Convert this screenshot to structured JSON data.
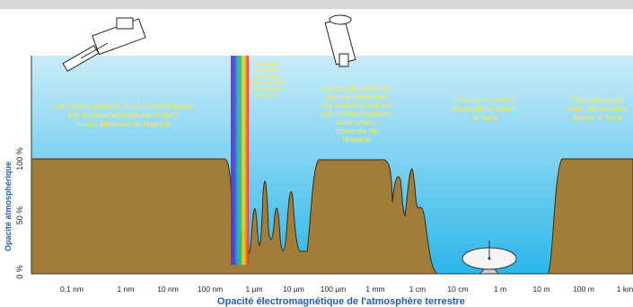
{
  "y_axis": {
    "title": "Opacité atmosphérique",
    "ticks": [
      "100 %",
      "50 %",
      "0 %"
    ]
  },
  "x_axis": {
    "title": "Opacité électromagnétique de l'atmosphère terrestre",
    "ticks": [
      "0,1 nm",
      "1 nm",
      "10 nm",
      "100 nm",
      "1 µm",
      "10 µm",
      "100 µm",
      "1 mm",
      "1 cm",
      "10 cm",
      "1 m",
      "10 m",
      "100 m",
      "1 km"
    ]
  },
  "annotations": [
    {
      "lines": [
        "Les rayons gamma, X et UV sont bloqués",
        "par la haute atmosphère et donc",
        "mieux observés de l'espace"
      ]
    },
    {
      "lines": [
        "La lumière",
        "visible est",
        "observable",
        "depuis la Terre",
        "avec quelques",
        "distorsions"
      ]
    },
    {
      "lines": [
        "La grande partie du",
        "spectre infrarouge",
        "est absorbée par les",
        "gaz de l'atmosphère,",
        "donc mieux",
        "observée de",
        "l'espace"
      ]
    },
    {
      "lines": [
        "O n d e s  r a d i o",
        "observables depuis",
        "la Terre"
      ]
    },
    {
      "lines": [
        "Ondes longues",
        "radio observables",
        "depuis la Terre"
      ]
    }
  ]
}
